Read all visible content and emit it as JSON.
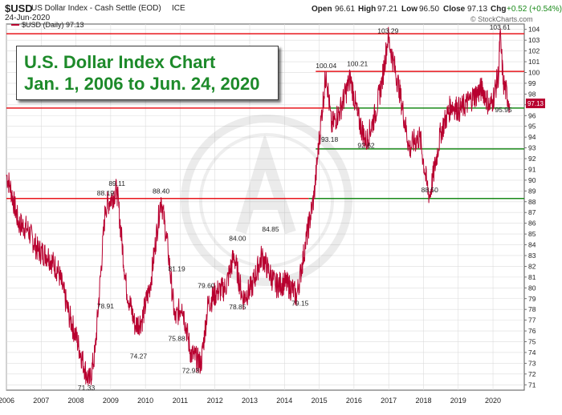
{
  "header": {
    "symbol": "$USD",
    "description": "US Dollar Index - Cash Settle (EOD)",
    "exchange": "ICE",
    "date": "24-Jun-2020",
    "open_label": "Open",
    "open": "96.61",
    "high_label": "High",
    "high": "97.21",
    "low_label": "Low",
    "low": "96.50",
    "close_label": "Close",
    "close": "97.13",
    "chg_label": "Chg",
    "chg": "+0.52 (+0.54%)",
    "legend": "$USD (Daily) 97.13",
    "watermark": "© StockCharts.com"
  },
  "title_box": {
    "line1": "U.S. Dollar Index Chart",
    "line2": "Jan. 1, 2006 to Jun. 24, 2020"
  },
  "colors": {
    "price_line": "#b8002f",
    "resistance": "#e8161c",
    "support": "#1a8a1a",
    "title_text": "#1d8a2a",
    "grid": "#dcdcdc"
  },
  "chart_data": {
    "type": "line",
    "series": [
      {
        "name": "$USD (Daily)",
        "x": [
          2006.0,
          2006.1,
          2006.35,
          2006.6,
          2006.9,
          2007.2,
          2007.5,
          2007.8,
          2008.0,
          2008.3,
          2008.4,
          2008.55,
          2008.85,
          2009.18,
          2009.45,
          2009.7,
          2009.9,
          2010.15,
          2010.45,
          2010.65,
          2010.85,
          2011.05,
          2011.3,
          2011.6,
          2011.8,
          2012.05,
          2012.3,
          2012.55,
          2012.8,
          2013.05,
          2013.35,
          2013.55,
          2013.75,
          2014.0,
          2014.25,
          2014.35,
          2014.6,
          2014.85,
          2015.05,
          2015.2,
          2015.35,
          2015.6,
          2015.9,
          2016.1,
          2016.35,
          2016.6,
          2016.8,
          2016.98,
          2017.3,
          2017.6,
          2017.7,
          2017.9,
          2018.1,
          2018.18,
          2018.5,
          2018.8,
          2019.05,
          2019.35,
          2019.7,
          2019.9,
          2020.0,
          2020.17,
          2020.2,
          2020.3,
          2020.48
        ],
        "y": [
          90.5,
          89.5,
          86.0,
          85.5,
          83.5,
          83.0,
          81.5,
          77.5,
          75.5,
          72.0,
          71.33,
          74.0,
          87.5,
          89.11,
          80.0,
          76.5,
          77.0,
          80.5,
          88.4,
          83.5,
          77.0,
          78.5,
          74.0,
          72.93,
          78.5,
          79.6,
          80.0,
          83.0,
          79.0,
          80.0,
          83.0,
          81.5,
          80.2,
          80.5,
          79.8,
          79.15,
          84.0,
          88.5,
          95.5,
          100.04,
          95.0,
          96.5,
          99.5,
          96.0,
          93.5,
          96.0,
          99.0,
          103.29,
          98.5,
          92.8,
          93.5,
          94.0,
          89.5,
          88.5,
          94.5,
          97.0,
          96.5,
          97.5,
          98.5,
          96.8,
          97.5,
          100.0,
          103.61,
          99.0,
          97.13
        ]
      }
    ],
    "horizontal_lines": [
      {
        "type": "resistance",
        "value": 103.6
      },
      {
        "type": "resistance",
        "value": 100.1
      },
      {
        "type": "resistance",
        "value": 96.7
      },
      {
        "type": "resistance",
        "value": 88.3
      },
      {
        "type": "support",
        "value": 96.7
      },
      {
        "type": "support",
        "value": 92.9
      },
      {
        "type": "support",
        "value": 88.3
      }
    ],
    "annotations": [
      {
        "x": 2008.3,
        "y": 71.33,
        "text": "71.33"
      },
      {
        "x": 2008.85,
        "y": 88.19,
        "text": "88.19"
      },
      {
        "x": 2009.18,
        "y": 89.11,
        "text": "89.11"
      },
      {
        "x": 2008.85,
        "y": 78.91,
        "text": "78.91"
      },
      {
        "x": 2009.8,
        "y": 74.27,
        "text": "74.27"
      },
      {
        "x": 2010.45,
        "y": 88.4,
        "text": "88.40"
      },
      {
        "x": 2010.9,
        "y": 81.19,
        "text": "81.19"
      },
      {
        "x": 2010.9,
        "y": 75.88,
        "text": "75.88"
      },
      {
        "x": 2011.3,
        "y": 72.93,
        "text": "72.93"
      },
      {
        "x": 2011.75,
        "y": 79.6,
        "text": "79.60"
      },
      {
        "x": 2012.65,
        "y": 84.0,
        "text": "84.00"
      },
      {
        "x": 2012.65,
        "y": 78.85,
        "text": "78.85"
      },
      {
        "x": 2013.6,
        "y": 84.85,
        "text": "84.85"
      },
      {
        "x": 2014.45,
        "y": 79.15,
        "text": "79.15"
      },
      {
        "x": 2015.2,
        "y": 100.04,
        "text": "100.04"
      },
      {
        "x": 2015.3,
        "y": 93.18,
        "text": "93.18"
      },
      {
        "x": 2016.1,
        "y": 100.21,
        "text": "100.21"
      },
      {
        "x": 2016.35,
        "y": 92.62,
        "text": "92.62"
      },
      {
        "x": 2016.98,
        "y": 103.29,
        "text": "103.29"
      },
      {
        "x": 2018.18,
        "y": 88.5,
        "text": "88.50"
      },
      {
        "x": 2020.2,
        "y": 103.61,
        "text": "103.61"
      },
      {
        "x": 2020.3,
        "y": 95.95,
        "text": "95.95"
      }
    ],
    "x_ticks": [
      "2006",
      "2007",
      "2008",
      "2009",
      "2010",
      "2011",
      "2012",
      "2013",
      "2014",
      "2015",
      "2016",
      "2017",
      "2018",
      "2019",
      "2020"
    ],
    "y_ticks": [
      71,
      72,
      73,
      74,
      75,
      76,
      77,
      78,
      79,
      80,
      81,
      82,
      83,
      84,
      85,
      86,
      87,
      88,
      89,
      90,
      91,
      92,
      93,
      94,
      95,
      96,
      97,
      98,
      99,
      100,
      101,
      102,
      103,
      104
    ],
    "xlim": [
      2006.0,
      2020.9
    ],
    "ylim": [
      70.5,
      104.5
    ],
    "grid": true,
    "legend": "top-left"
  }
}
